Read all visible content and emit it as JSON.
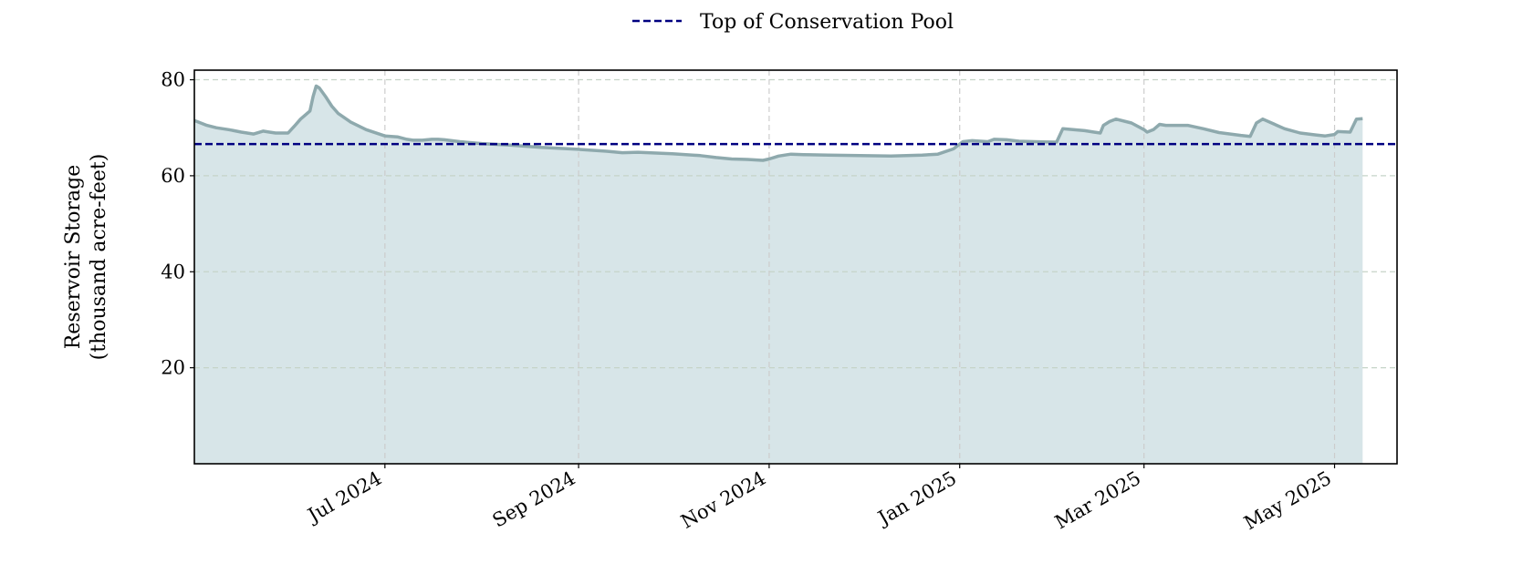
{
  "chart_data": {
    "type": "area",
    "title": "",
    "ylabel_lines": [
      "Reservoir Storage",
      "(thousand acre-feet)"
    ],
    "xlabel": "",
    "ylim": [
      0,
      82
    ],
    "xlim": [
      "2024-05-01",
      "2025-05-21"
    ],
    "grid": true,
    "legend_position": "top-center",
    "yticks": [
      20,
      40,
      60,
      80
    ],
    "xticks": [
      {
        "date": "2024-07-01",
        "label": "Jul 2024"
      },
      {
        "date": "2024-09-01",
        "label": "Sep 2024"
      },
      {
        "date": "2024-11-01",
        "label": "Nov 2024"
      },
      {
        "date": "2025-01-01",
        "label": "Jan 2025"
      },
      {
        "date": "2025-03-01",
        "label": "Mar 2025"
      },
      {
        "date": "2025-05-01",
        "label": "May 2025"
      }
    ],
    "colors": {
      "storage_line": "#8ea9ad",
      "storage_fill": "#d7e5e8",
      "conservation_line": "#000080",
      "grid": "#c6d4c8"
    },
    "conservation_pool": {
      "name": "Top of Conservation Pool",
      "value": 66.6
    },
    "series": [
      {
        "x": [
          "2024-05-01",
          "2024-05-05",
          "2024-05-08",
          "2024-05-12",
          "2024-05-16",
          "2024-05-20",
          "2024-05-23",
          "2024-05-25",
          "2024-05-27",
          "2024-05-31",
          "2024-06-02",
          "2024-06-04",
          "2024-06-07",
          "2024-06-08",
          "2024-06-09",
          "2024-06-10",
          "2024-06-12",
          "2024-06-14",
          "2024-06-16",
          "2024-06-20",
          "2024-06-25",
          "2024-07-01",
          "2024-07-05",
          "2024-07-08",
          "2024-07-10",
          "2024-07-13",
          "2024-07-16",
          "2024-07-18",
          "2024-07-20",
          "2024-07-25",
          "2024-08-01",
          "2024-08-10",
          "2024-08-20",
          "2024-09-01",
          "2024-09-10",
          "2024-09-15",
          "2024-09-20",
          "2024-10-01",
          "2024-10-10",
          "2024-10-15",
          "2024-10-20",
          "2024-10-25",
          "2024-10-30",
          "2024-11-01",
          "2024-11-04",
          "2024-11-07",
          "2024-11-08",
          "2024-11-12",
          "2024-11-20",
          "2024-11-30",
          "2024-12-10",
          "2024-12-15",
          "2024-12-20",
          "2024-12-25",
          "2024-12-30",
          "2025-01-02",
          "2025-01-05",
          "2025-01-10",
          "2025-01-12",
          "2025-01-16",
          "2025-01-20",
          "2025-01-25",
          "2025-02-01",
          "2025-02-03",
          "2025-02-10",
          "2025-02-13",
          "2025-02-15",
          "2025-02-16",
          "2025-02-18",
          "2025-02-20",
          "2025-02-25",
          "2025-03-01",
          "2025-03-02",
          "2025-03-04",
          "2025-03-06",
          "2025-03-08",
          "2025-03-15",
          "2025-03-20",
          "2025-03-25",
          "2025-04-01",
          "2025-04-04",
          "2025-04-06",
          "2025-04-08",
          "2025-04-15",
          "2025-04-20",
          "2025-04-25",
          "2025-04-28",
          "2025-05-01",
          "2025-05-02",
          "2025-05-06",
          "2025-05-08",
          "2025-05-10"
        ],
        "values": [
          71.5,
          70.5,
          70.0,
          69.6,
          69.1,
          68.7,
          69.3,
          69.1,
          68.9,
          68.9,
          70.3,
          71.8,
          73.5,
          76.5,
          78.7,
          78.3,
          76.5,
          74.5,
          73.0,
          71.2,
          69.6,
          68.3,
          68.1,
          67.6,
          67.4,
          67.4,
          67.6,
          67.6,
          67.5,
          67.1,
          66.7,
          66.4,
          65.9,
          65.5,
          65.1,
          64.8,
          64.9,
          64.6,
          64.2,
          63.8,
          63.5,
          63.4,
          63.2,
          63.5,
          64.1,
          64.4,
          64.5,
          64.4,
          64.3,
          64.2,
          64.1,
          64.2,
          64.3,
          64.5,
          65.6,
          67.1,
          67.3,
          67.1,
          67.6,
          67.5,
          67.2,
          67.1,
          67.0,
          69.8,
          69.4,
          69.1,
          68.9,
          70.5,
          71.3,
          71.8,
          71.0,
          69.6,
          69.1,
          69.6,
          70.7,
          70.5,
          70.5,
          69.8,
          69.0,
          68.4,
          68.2,
          71.0,
          71.8,
          69.8,
          68.9,
          68.5,
          68.3,
          68.6,
          69.2,
          69.1,
          71.8,
          71.9
        ]
      }
    ]
  }
}
